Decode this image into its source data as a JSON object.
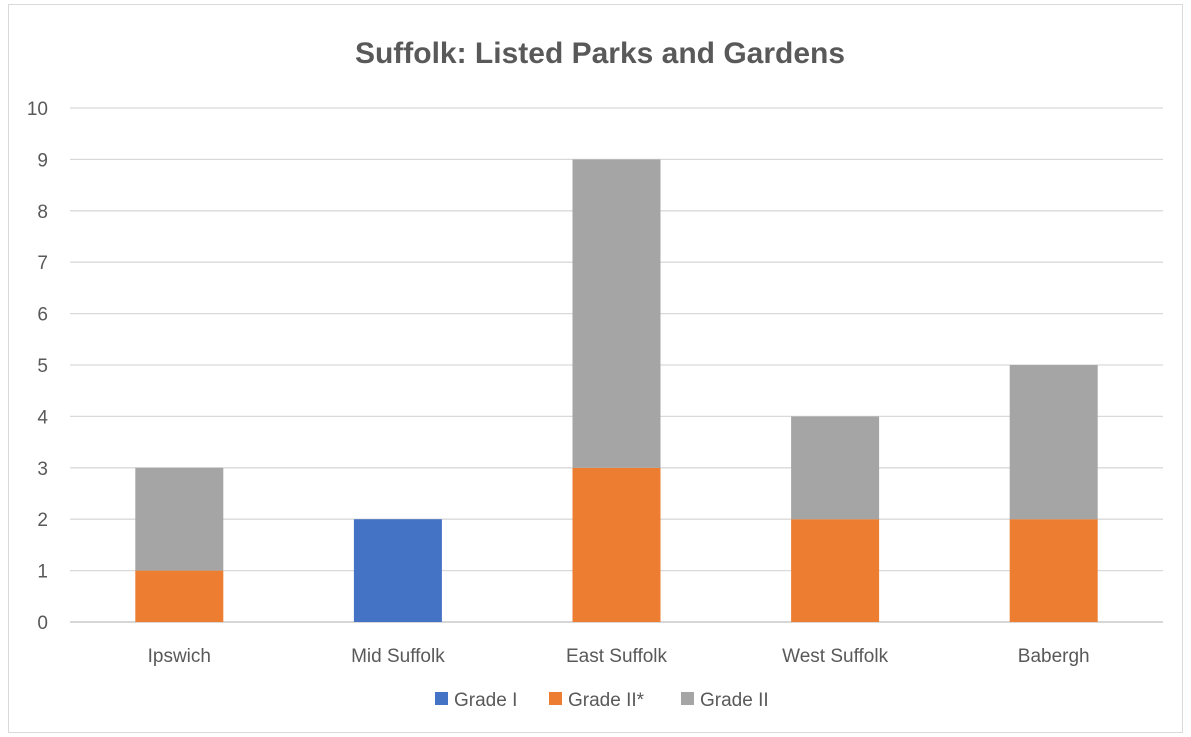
{
  "chart_data": {
    "type": "bar",
    "stacked": true,
    "title": "Suffolk: Listed Parks and Gardens",
    "xlabel": "",
    "ylabel": "",
    "categories": [
      "Ipswich",
      "Mid Suffolk",
      "East Suffolk",
      "West Suffolk",
      "Babergh"
    ],
    "series": [
      {
        "name": "Grade I",
        "color": "#4472c4",
        "values": [
          0,
          2,
          0,
          0,
          0
        ]
      },
      {
        "name": "Grade II*",
        "color": "#ed7d31",
        "values": [
          1,
          0,
          3,
          2,
          2
        ]
      },
      {
        "name": "Grade II",
        "color": "#a5a5a5",
        "values": [
          2,
          0,
          6,
          2,
          3
        ]
      }
    ],
    "ylim": [
      0,
      10
    ],
    "yticks": [
      "0",
      "1",
      "2",
      "3",
      "4",
      "5",
      "6",
      "7",
      "8",
      "9",
      "10"
    ],
    "grid": true,
    "legend": "bottom"
  }
}
